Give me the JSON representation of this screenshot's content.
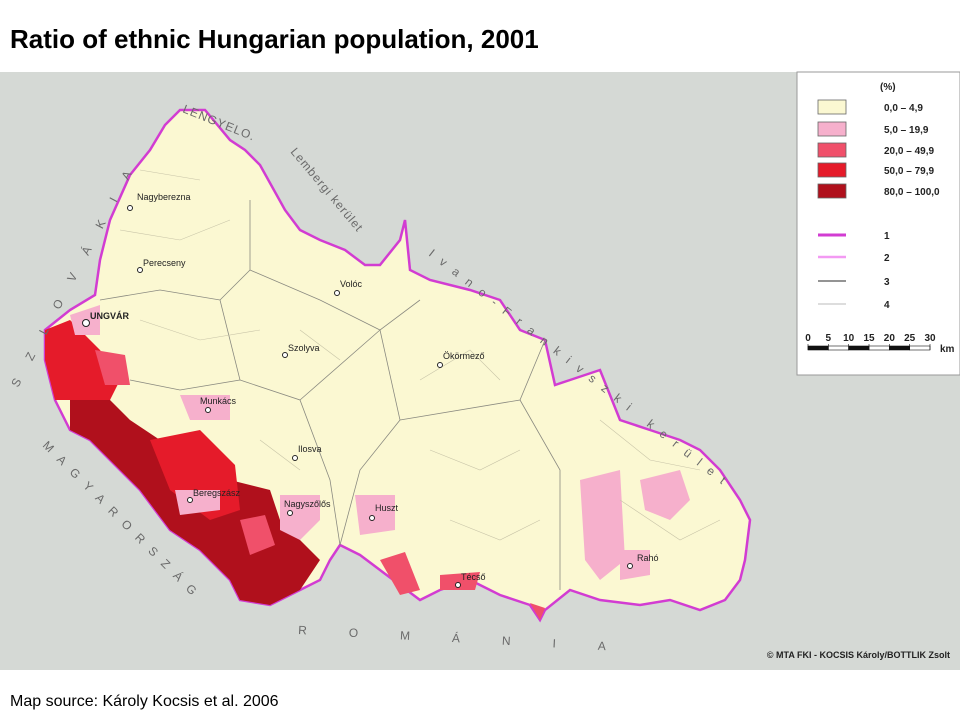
{
  "header": {
    "title": "Ratio of ethnic Hungarian population, 2001"
  },
  "map": {
    "neighbors": [
      "LENGYELO.",
      "Lembergi kerület",
      "Ivano-Frankivszki kerület",
      "SZLOVÁKIA",
      "MAGYARORSZÁG",
      "ROMÁNIA"
    ],
    "towns": [
      "Nagyberezna",
      "Perecseny",
      "Volóc",
      "UNGVÁR",
      "Szolyva",
      "Ökörmező",
      "Munkács",
      "Ilosva",
      "Beregszász",
      "Nagyszőlős",
      "Huszt",
      "Técső",
      "Rahó"
    ],
    "credit": "© MTA FKI - KOCSIS Károly/BOTTLIK Zsolt"
  },
  "legend": {
    "unit": "(%)",
    "classes": [
      {
        "label": "0,0 – 4,9",
        "color": "#fbf8d2"
      },
      {
        "label": "5,0 – 19,9",
        "color": "#f6b0cc"
      },
      {
        "label": "20,0 – 49,9",
        "color": "#f0506a"
      },
      {
        "label": "50,0 – 79,9",
        "color": "#e51b2a"
      },
      {
        "label": "80,0 – 100,0",
        "color": "#b0101c"
      }
    ],
    "lines": [
      {
        "label": "1",
        "color": "#d23cd2"
      },
      {
        "label": "2",
        "color": "#f39af3"
      },
      {
        "label": "3",
        "color": "#555555"
      },
      {
        "label": "4",
        "color": "#bbbbbb"
      }
    ],
    "scale": {
      "ticks": [
        0,
        5,
        10,
        15,
        20,
        25,
        30
      ],
      "unit": "km"
    }
  },
  "footer": {
    "source": "Map source: Károly Kocsis et al. 2006"
  }
}
